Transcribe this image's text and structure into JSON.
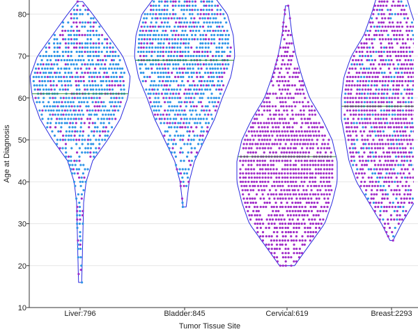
{
  "chart_data": {
    "type": "violin-swarm",
    "xlabel": "Tumor Tissue Site",
    "ylabel": "Age at Diagnosis",
    "ylim": [
      10,
      83
    ],
    "yticks": [
      10,
      20,
      30,
      40,
      50,
      60,
      70,
      80
    ],
    "grid": true,
    "colors": {
      "blue": "#2f95e8",
      "purple": "#a02cc9",
      "outline": "#2a2ae0",
      "median": "#2e8b2e"
    },
    "categories": [
      {
        "label": "Liver:796",
        "median": 61,
        "min": 16,
        "max": 83,
        "profile": [
          [
            16,
            0.03
          ],
          [
            20,
            0.04
          ],
          [
            25,
            0.05
          ],
          [
            30,
            0.06
          ],
          [
            35,
            0.07
          ],
          [
            40,
            0.12
          ],
          [
            45,
            0.25
          ],
          [
            50,
            0.55
          ],
          [
            55,
            0.8
          ],
          [
            60,
            0.95
          ],
          [
            65,
            1.0
          ],
          [
            70,
            0.85
          ],
          [
            75,
            0.55
          ],
          [
            80,
            0.25
          ],
          [
            83,
            0.05
          ]
        ],
        "palette": [
          "blue",
          "blue",
          "blue",
          "purple"
        ]
      },
      {
        "label": "Bladder:845",
        "median": 69,
        "min": 34,
        "max": 84,
        "profile": [
          [
            34,
            0.03
          ],
          [
            37,
            0.06
          ],
          [
            40,
            0.09
          ],
          [
            45,
            0.2
          ],
          [
            50,
            0.4
          ],
          [
            55,
            0.6
          ],
          [
            60,
            0.75
          ],
          [
            65,
            0.92
          ],
          [
            70,
            1.0
          ],
          [
            75,
            0.97
          ],
          [
            80,
            0.85
          ],
          [
            84,
            0.6
          ]
        ],
        "palette": [
          "blue",
          "blue",
          "blue",
          "purple"
        ]
      },
      {
        "label": "Cervical:619",
        "median": 46,
        "min": 20,
        "max": 82,
        "profile": [
          [
            20,
            0.15
          ],
          [
            25,
            0.45
          ],
          [
            30,
            0.75
          ],
          [
            35,
            0.9
          ],
          [
            40,
            1.0
          ],
          [
            45,
            1.0
          ],
          [
            50,
            0.9
          ],
          [
            55,
            0.7
          ],
          [
            60,
            0.45
          ],
          [
            65,
            0.3
          ],
          [
            70,
            0.18
          ],
          [
            75,
            0.1
          ],
          [
            80,
            0.05
          ],
          [
            82,
            0.03
          ]
        ],
        "palette": [
          "purple"
        ]
      },
      {
        "label": "Breast:2293",
        "median": 58,
        "min": 26,
        "max": 84,
        "profile": [
          [
            26,
            0.03
          ],
          [
            30,
            0.2
          ],
          [
            35,
            0.45
          ],
          [
            40,
            0.7
          ],
          [
            45,
            0.85
          ],
          [
            50,
            0.92
          ],
          [
            55,
            1.0
          ],
          [
            60,
            1.0
          ],
          [
            65,
            0.95
          ],
          [
            70,
            0.8
          ],
          [
            75,
            0.55
          ],
          [
            80,
            0.4
          ],
          [
            84,
            0.3
          ]
        ],
        "palette": [
          "purple",
          "purple",
          "purple",
          "purple",
          "blue"
        ]
      }
    ]
  }
}
